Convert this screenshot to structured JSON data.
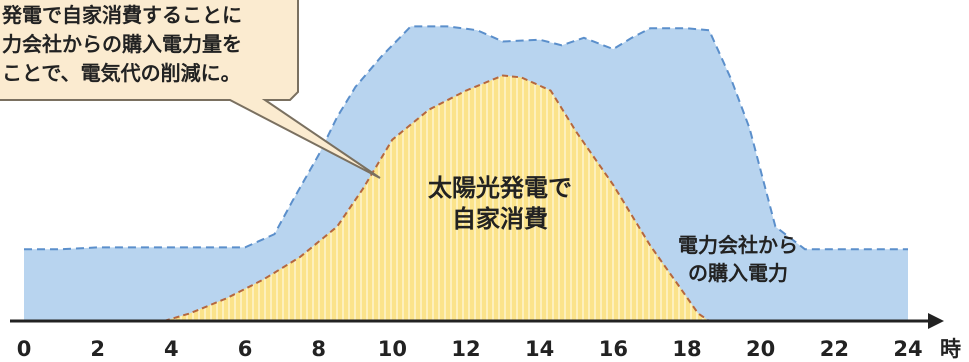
{
  "chart_data": {
    "type": "area",
    "x": [
      0,
      2,
      4,
      6,
      7,
      8,
      9,
      10,
      11,
      12,
      13,
      14,
      15,
      16,
      17,
      18,
      19,
      20,
      21,
      22,
      23,
      24
    ],
    "x_ticks": [
      "0",
      "2",
      "4",
      "6",
      "8",
      "10",
      "12",
      "14",
      "16",
      "18",
      "20",
      "22",
      "24"
    ],
    "x_unit": "時",
    "xlim": [
      0,
      24
    ],
    "series": [
      {
        "name": "電力会社からの購入電力",
        "x": [
          0,
          1,
          2,
          3,
          4,
          5,
          6,
          6.8,
          7.3,
          8,
          8.5,
          9,
          9.7,
          10.5,
          11.5,
          12.3,
          13,
          14,
          14.6,
          15.2,
          16,
          16.5,
          17,
          18,
          18.6,
          19.2,
          19.7,
          20.4,
          21.2,
          22,
          23,
          24
        ],
        "values": [
          1.9,
          1.9,
          1.95,
          1.95,
          1.95,
          1.95,
          1.95,
          2.3,
          3.2,
          4.4,
          5.4,
          6.2,
          7.0,
          7.8,
          7.8,
          7.7,
          7.4,
          7.45,
          7.3,
          7.5,
          7.2,
          7.5,
          7.75,
          7.75,
          7.7,
          6.4,
          5.1,
          2.5,
          1.9,
          1.9,
          1.9,
          1.9
        ],
        "color": "#b8d4ef",
        "border": "#5b8fcb"
      },
      {
        "name": "太陽光発電で自家消費",
        "x": [
          3.8,
          4.5,
          5.5,
          6.5,
          7.5,
          8.5,
          9.2,
          10,
          11,
          12,
          13,
          13.5,
          14.3,
          15,
          16,
          17,
          17.8,
          18.3,
          18.6
        ],
        "values": [
          0,
          0.2,
          0.6,
          1.1,
          1.7,
          2.5,
          3.5,
          4.8,
          5.6,
          6.1,
          6.5,
          6.45,
          6.1,
          5.0,
          3.6,
          2.0,
          0.9,
          0.2,
          0
        ],
        "color": "#fbe38a",
        "border": "#b5673e"
      }
    ],
    "ylim": [
      0,
      8.5
    ],
    "annotations": {
      "callout_lines": [
        "発電で自家消費することに",
        "力会社からの購入電力量を",
        "ことで、電気代の削減に。"
      ],
      "solar_label_lines": [
        "太陽光発電で",
        "自家消費"
      ],
      "grid_label_lines": [
        "電力会社から",
        "の購入電力"
      ]
    }
  }
}
